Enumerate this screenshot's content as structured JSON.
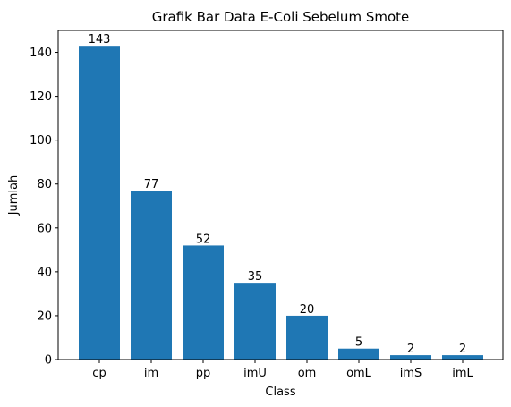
{
  "chart_data": {
    "type": "bar",
    "title": "Grafik Bar Data E-Coli Sebelum Smote",
    "xlabel": "Class",
    "ylabel": "Jumlah",
    "categories": [
      "cp",
      "im",
      "pp",
      "imU",
      "om",
      "omL",
      "imS",
      "imL"
    ],
    "values": [
      143,
      77,
      52,
      35,
      20,
      5,
      2,
      2
    ],
    "data_labels": [
      "143",
      "77",
      "52",
      "35",
      "20",
      "5",
      "2",
      "2"
    ],
    "ylim": [
      0,
      150
    ],
    "yticks": [
      0,
      20,
      40,
      60,
      80,
      100,
      120,
      140
    ],
    "grid": false,
    "legend": "none",
    "bar_color": "#1f77b4"
  }
}
